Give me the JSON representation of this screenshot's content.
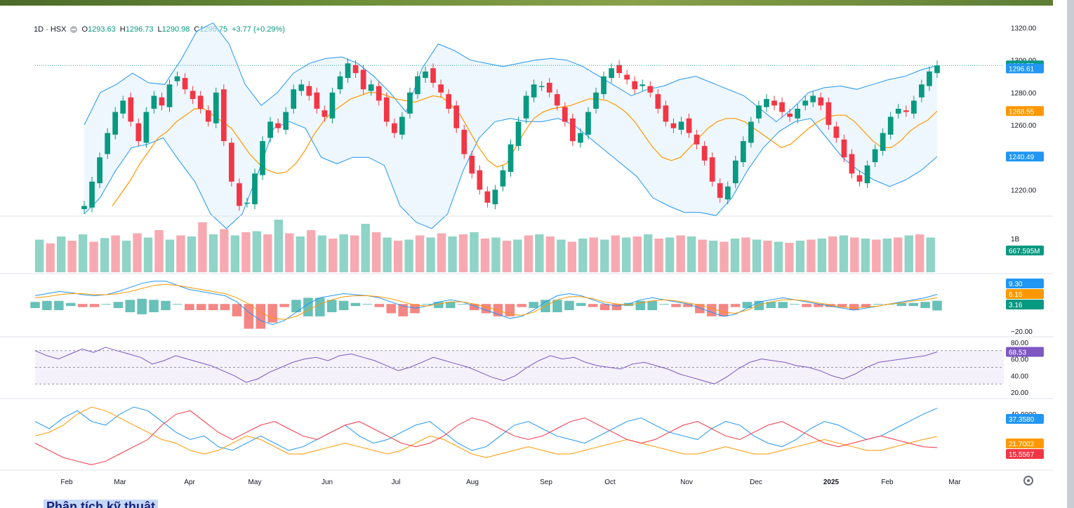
{
  "legend": {
    "symbol": "1D · HSX",
    "open_label": "O",
    "open": "1293.63",
    "high_label": "H",
    "high": "1296.73",
    "low_label": "L",
    "low": "1290.98",
    "close_label": "C",
    "close": "1296.75",
    "change": "+3.77 (+0.29%)"
  },
  "footer": {
    "title": "Phân tích kỹ thuật"
  },
  "colors": {
    "up": "#089981",
    "down": "#f23645",
    "band": "#2196f3",
    "ma": "#ff9800",
    "rsi": "#7e57c2",
    "vol_up": "#8fd4c6",
    "vol_down": "#f7a9b1"
  },
  "chart_data": [
    {
      "type": "candlestick",
      "pane": "price",
      "ylim": [
        1205,
        1325
      ],
      "y_ticks": [
        "1320.00",
        "1300.00",
        "1280.00",
        "1260.00",
        "1240.00",
        "1220.00"
      ],
      "x_ticks": [
        "Feb",
        "Mar",
        "Apr",
        "May",
        "Jun",
        "Jul",
        "Aug",
        "Sep",
        "Oct",
        "Nov",
        "Dec",
        "2025",
        "Feb",
        "Mar"
      ],
      "last_price": "1296.75",
      "badges": [
        {
          "value": "1296.75",
          "color": "#089981"
        },
        {
          "value": "1296.61",
          "color": "#2196f3"
        },
        {
          "value": "1268.55",
          "color": "#ff9800"
        },
        {
          "value": "1240.49",
          "color": "#2196f3"
        }
      ],
      "series": [
        {
          "name": "Close",
          "values": [
            1210,
            1225,
            1240,
            1255,
            1268,
            1275,
            1262,
            1250,
            1268,
            1278,
            1272,
            1285,
            1290,
            1282,
            1276,
            1270,
            1262,
            1280,
            1250,
            1225,
            1210,
            1212,
            1230,
            1250,
            1262,
            1258,
            1268,
            1282,
            1285,
            1278,
            1270,
            1265,
            1280,
            1290,
            1298,
            1292,
            1282,
            1285,
            1275,
            1262,
            1255,
            1265,
            1280,
            1290,
            1293,
            1286,
            1280,
            1270,
            1258,
            1242,
            1230,
            1220,
            1212,
            1220,
            1232,
            1248,
            1262,
            1278,
            1285,
            1284,
            1280,
            1272,
            1262,
            1250,
            1255,
            1268,
            1280,
            1290,
            1295,
            1292,
            1288,
            1282,
            1285,
            1280,
            1270,
            1262,
            1258,
            1262,
            1255,
            1248,
            1238,
            1225,
            1215,
            1222,
            1238,
            1250,
            1262,
            1272,
            1276,
            1272,
            1268,
            1265,
            1270,
            1275,
            1278,
            1272,
            1260,
            1252,
            1240,
            1230,
            1225,
            1235,
            1245,
            1255,
            1265,
            1270,
            1268,
            1275,
            1285,
            1293,
            1296.75
          ]
        },
        {
          "name": "MA",
          "values": [
            1210,
            1218,
            1226,
            1236,
            1244,
            1252,
            1256,
            1262,
            1266,
            1270,
            1270,
            1266,
            1262,
            1258,
            1250,
            1242,
            1236,
            1232,
            1230,
            1231,
            1236,
            1244,
            1254,
            1262,
            1268,
            1272,
            1276,
            1278,
            1280,
            1280,
            1278,
            1276,
            1275,
            1274,
            1276,
            1278,
            1277,
            1272,
            1266,
            1256,
            1246,
            1238,
            1234,
            1236,
            1246,
            1256,
            1264,
            1268,
            1270,
            1271,
            1272,
            1274,
            1276,
            1276,
            1275,
            1272,
            1268,
            1262,
            1254,
            1246,
            1240,
            1238,
            1240,
            1246,
            1252,
            1258,
            1262,
            1264,
            1264,
            1262,
            1258,
            1254,
            1250,
            1246,
            1248,
            1253,
            1258,
            1262,
            1265,
            1266,
            1266,
            1262,
            1256,
            1250,
            1246,
            1246,
            1250,
            1256,
            1260,
            1263,
            1268.55
          ]
        },
        {
          "name": "Upper band",
          "values": [
            1260,
            1280,
            1285,
            1292,
            1286,
            1285,
            1300,
            1318,
            1323,
            1310,
            1285,
            1272,
            1280,
            1292,
            1298,
            1301,
            1302,
            1298,
            1290,
            1280,
            1268,
            1295,
            1310,
            1306,
            1300,
            1298,
            1296,
            1298,
            1300,
            1301,
            1300,
            1296,
            1290,
            1284,
            1278,
            1282,
            1284,
            1288,
            1290,
            1286,
            1282,
            1278,
            1270,
            1262,
            1270,
            1280,
            1283,
            1284,
            1282,
            1285,
            1288,
            1290,
            1294,
            1296.61
          ]
        },
        {
          "name": "Lower band",
          "values": [
            1205,
            1215,
            1232,
            1246,
            1248,
            1252,
            1238,
            1225,
            1205,
            1196,
            1205,
            1230,
            1258,
            1262,
            1258,
            1240,
            1236,
            1240,
            1240,
            1235,
            1210,
            1200,
            1196,
            1205,
            1232,
            1252,
            1262,
            1264,
            1262,
            1262,
            1264,
            1260,
            1252,
            1244,
            1236,
            1228,
            1215,
            1210,
            1206,
            1206,
            1204,
            1215,
            1232,
            1246,
            1256,
            1262,
            1264,
            1252,
            1240,
            1232,
            1226,
            1222,
            1226,
            1232,
            1240.49
          ]
        }
      ]
    },
    {
      "type": "bar",
      "pane": "volume",
      "y_ticks": [
        "1B"
      ],
      "badge": "667.595M",
      "values": [
        0.62,
        0.55,
        0.68,
        0.6,
        0.72,
        0.58,
        0.65,
        0.7,
        0.6,
        0.74,
        0.66,
        0.8,
        0.62,
        0.7,
        0.68,
        0.95,
        0.72,
        0.82,
        0.7,
        0.76,
        0.78,
        0.72,
        1.0,
        0.74,
        0.68,
        0.8,
        0.7,
        0.64,
        0.72,
        0.7,
        0.92,
        0.76,
        0.66,
        0.6,
        0.62,
        0.7,
        0.66,
        0.74,
        0.68,
        0.72,
        0.76,
        0.64,
        0.66,
        0.6,
        0.62,
        0.7,
        0.72,
        0.68,
        0.62,
        0.58,
        0.64,
        0.66,
        0.62,
        0.7,
        0.66,
        0.68,
        0.72,
        0.64,
        0.66,
        0.7,
        0.68,
        0.62,
        0.6,
        0.58,
        0.64,
        0.66,
        0.62,
        0.6,
        0.58,
        0.56,
        0.6,
        0.62,
        0.64,
        0.68,
        0.7,
        0.66,
        0.64,
        0.62,
        0.64,
        0.66,
        0.7,
        0.72,
        0.66
      ]
    },
    {
      "type": "line",
      "pane": "macd",
      "badges": [
        {
          "value": "9.30",
          "color": "#2196f3"
        },
        {
          "value": "6.15",
          "color": "#ff9800"
        },
        {
          "value": "3.16",
          "color": "#089981"
        }
      ],
      "y_ticks": [
        "−20.00"
      ],
      "series": [
        {
          "values": [
            8,
            10,
            12,
            11,
            9,
            8,
            9,
            12,
            16,
            20,
            22,
            22,
            18,
            14,
            12,
            10,
            8,
            2,
            -8,
            -16,
            -20,
            -16,
            -8,
            0,
            6,
            8,
            10,
            9,
            8,
            6,
            2,
            -2,
            -4,
            -2,
            2,
            4,
            2,
            -2,
            -6,
            -10,
            -14,
            -12,
            -6,
            2,
            8,
            10,
            8,
            4,
            0,
            -2,
            0,
            4,
            6,
            4,
            2,
            0,
            -4,
            -8,
            -12,
            -10,
            -4,
            2,
            4,
            6,
            4,
            2,
            0,
            -2,
            -4,
            -6,
            -4,
            -2,
            0,
            2,
            4,
            6,
            9.3
          ]
        },
        {
          "values": [
            6,
            7,
            9,
            10,
            10,
            9,
            9,
            10,
            12,
            15,
            18,
            19,
            18,
            16,
            14,
            12,
            10,
            6,
            0,
            -8,
            -14,
            -15,
            -12,
            -6,
            0,
            4,
            7,
            8,
            8,
            7,
            5,
            2,
            -1,
            -2,
            0,
            2,
            2,
            0,
            -3,
            -6,
            -10,
            -11,
            -8,
            -2,
            4,
            7,
            7,
            5,
            2,
            0,
            -1,
            1,
            3,
            4,
            3,
            1,
            -1,
            -4,
            -8,
            -9,
            -6,
            -1,
            2,
            4,
            4,
            3,
            1,
            -1,
            -3,
            -4,
            -3,
            -2,
            0,
            1,
            3,
            4,
            6.15
          ]
        }
      ]
    },
    {
      "type": "line",
      "pane": "rsi",
      "ylim": [
        15,
        85
      ],
      "y_ticks": [
        "80.00",
        "60.00",
        "40.00",
        "20.00"
      ],
      "bands": [
        70,
        50,
        30
      ],
      "badge": "68.53",
      "values": [
        70,
        64,
        60,
        66,
        72,
        68,
        74,
        70,
        66,
        62,
        54,
        58,
        64,
        60,
        56,
        52,
        46,
        40,
        32,
        36,
        44,
        50,
        56,
        60,
        62,
        58,
        64,
        66,
        62,
        58,
        52,
        46,
        50,
        56,
        62,
        58,
        54,
        50,
        44,
        38,
        34,
        40,
        50,
        58,
        64,
        60,
        62,
        56,
        52,
        50,
        48,
        54,
        56,
        52,
        48,
        42,
        38,
        34,
        30,
        38,
        48,
        56,
        60,
        58,
        56,
        52,
        50,
        46,
        40,
        36,
        42,
        50,
        56,
        58,
        60,
        62,
        64,
        68.53
      ]
    },
    {
      "type": "line",
      "pane": "dmi",
      "y_ticks": [
        "40.0000"
      ],
      "badges": [
        {
          "value": "37.3580",
          "color": "#2196f3"
        },
        {
          "value": "21.7002",
          "color": "#ff9800"
        },
        {
          "value": "15.5567",
          "color": "#f23645"
        }
      ],
      "series": [
        {
          "values": [
            30,
            26,
            32,
            36,
            30,
            28,
            34,
            38,
            36,
            30,
            24,
            20,
            22,
            16,
            14,
            18,
            22,
            18,
            14,
            16,
            20,
            24,
            28,
            22,
            18,
            20,
            24,
            28,
            30,
            24,
            18,
            14,
            16,
            22,
            28,
            30,
            26,
            22,
            20,
            18,
            22,
            26,
            30,
            32,
            28,
            24,
            22,
            20,
            26,
            30,
            28,
            22,
            18,
            16,
            20,
            26,
            30,
            28,
            24,
            20,
            22,
            26,
            30,
            34,
            37.358
          ]
        },
        {
          "values": [
            22,
            24,
            28,
            34,
            38,
            36,
            32,
            28,
            24,
            20,
            18,
            14,
            12,
            14,
            18,
            22,
            20,
            16,
            12,
            12,
            14,
            16,
            18,
            16,
            14,
            12,
            14,
            18,
            22,
            20,
            16,
            12,
            10,
            12,
            14,
            16,
            14,
            12,
            12,
            14,
            16,
            18,
            20,
            18,
            16,
            14,
            12,
            12,
            14,
            16,
            14,
            12,
            12,
            14,
            16,
            18,
            20,
            18,
            16,
            14,
            14,
            16,
            18,
            20,
            21.7002
          ]
        },
        {
          "values": [
            18,
            14,
            10,
            8,
            6,
            8,
            12,
            16,
            20,
            28,
            34,
            36,
            30,
            24,
            20,
            24,
            28,
            30,
            26,
            22,
            20,
            24,
            28,
            30,
            26,
            22,
            18,
            16,
            18,
            22,
            28,
            32,
            30,
            26,
            22,
            20,
            22,
            26,
            30,
            32,
            28,
            24,
            20,
            18,
            20,
            24,
            28,
            30,
            26,
            22,
            20,
            24,
            28,
            30,
            26,
            22,
            18,
            16,
            18,
            20,
            22,
            20,
            18,
            16,
            15.5567
          ]
        }
      ]
    }
  ]
}
